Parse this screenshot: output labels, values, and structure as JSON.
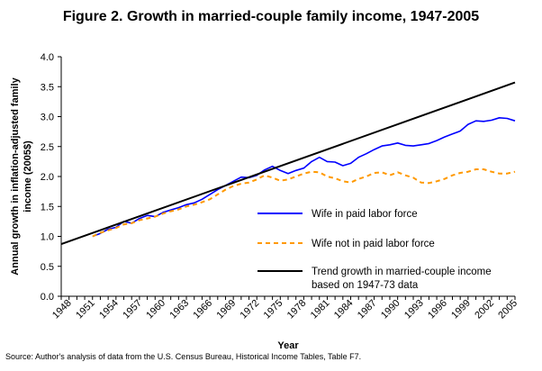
{
  "chart_data": {
    "type": "line",
    "title": "Figure 2. Growth in married-couple family income, 1947-2005",
    "xlabel": "Year",
    "ylabel_lines": [
      "Annual growth in inflation-adjusted family",
      "income (2005$)"
    ],
    "source": "Source: Author's analysis of data from the U.S. Census Bureau, Historical Income Tables, Table F7.",
    "xlim": [
      1947,
      2005
    ],
    "ylim": [
      0,
      4
    ],
    "x_tick_labels": [
      "1948",
      "1951",
      "1954",
      "1957",
      "1960",
      "1963",
      "1966",
      "1969",
      "1972",
      "1975",
      "1978",
      "1981",
      "1984",
      "1987",
      "1990",
      "1993",
      "1996",
      "1999",
      "2002",
      "2005"
    ],
    "y_tick_labels": [
      "0.0",
      "0.5",
      "1.0",
      "1.5",
      "2.0",
      "2.5",
      "3.0",
      "3.5",
      "4.0"
    ],
    "grid": false,
    "legend_position": "right-center",
    "series": [
      {
        "name": "Wife in paid labor force",
        "color": "#0000ff",
        "style": "solid",
        "x": [
          1951,
          1952,
          1953,
          1954,
          1955,
          1956,
          1957,
          1958,
          1959,
          1960,
          1961,
          1962,
          1963,
          1964,
          1965,
          1966,
          1967,
          1968,
          1969,
          1970,
          1971,
          1972,
          1973,
          1974,
          1975,
          1976,
          1977,
          1978,
          1979,
          1980,
          1981,
          1982,
          1983,
          1984,
          1985,
          1986,
          1987,
          1988,
          1989,
          1990,
          1991,
          1992,
          1993,
          1994,
          1995,
          1996,
          1997,
          1998,
          1999,
          2000,
          2001,
          2002,
          2003,
          2004,
          2005
        ],
        "values": [
          1.0,
          1.05,
          1.12,
          1.15,
          1.25,
          1.22,
          1.3,
          1.35,
          1.33,
          1.4,
          1.44,
          1.48,
          1.53,
          1.56,
          1.62,
          1.7,
          1.78,
          1.85,
          1.92,
          1.99,
          1.98,
          2.02,
          2.11,
          2.17,
          2.1,
          2.05,
          2.1,
          2.14,
          2.25,
          2.32,
          2.25,
          2.24,
          2.18,
          2.22,
          2.32,
          2.38,
          2.45,
          2.51,
          2.53,
          2.56,
          2.52,
          2.51,
          2.53,
          2.55,
          2.6,
          2.66,
          2.71,
          2.76,
          2.87,
          2.93,
          2.92,
          2.94,
          2.98,
          2.97,
          2.93
        ]
      },
      {
        "name": "Wife not in paid labor force",
        "color": "#ff9900",
        "style": "dashed",
        "x": [
          1951,
          1952,
          1953,
          1954,
          1955,
          1956,
          1957,
          1958,
          1959,
          1960,
          1961,
          1962,
          1963,
          1964,
          1965,
          1966,
          1967,
          1968,
          1969,
          1970,
          1971,
          1972,
          1973,
          1974,
          1975,
          1976,
          1977,
          1978,
          1979,
          1980,
          1981,
          1982,
          1983,
          1984,
          1985,
          1986,
          1987,
          1988,
          1989,
          1990,
          1991,
          1992,
          1993,
          1994,
          1995,
          1996,
          1997,
          1998,
          1999,
          2000,
          2001,
          2002,
          2003,
          2004,
          2005
        ],
        "values": [
          1.0,
          1.06,
          1.1,
          1.14,
          1.2,
          1.22,
          1.27,
          1.3,
          1.33,
          1.38,
          1.42,
          1.45,
          1.5,
          1.53,
          1.57,
          1.62,
          1.7,
          1.78,
          1.84,
          1.88,
          1.9,
          1.95,
          2.02,
          1.98,
          1.93,
          1.95,
          2.0,
          2.05,
          2.08,
          2.07,
          2.0,
          1.97,
          1.92,
          1.9,
          1.96,
          2.0,
          2.06,
          2.07,
          2.02,
          2.07,
          2.02,
          1.98,
          1.9,
          1.89,
          1.92,
          1.96,
          2.02,
          2.06,
          2.08,
          2.12,
          2.12,
          2.08,
          2.05,
          2.05,
          2.08
        ]
      },
      {
        "name": "Trend growth in married-couple income based on 1947-73 data",
        "legend_lines": [
          "Trend growth in married-couple income",
          "based on 1947-73 data"
        ],
        "color": "#000000",
        "style": "solid",
        "x": [
          1947,
          2005
        ],
        "values": [
          0.87,
          3.57
        ]
      }
    ]
  }
}
